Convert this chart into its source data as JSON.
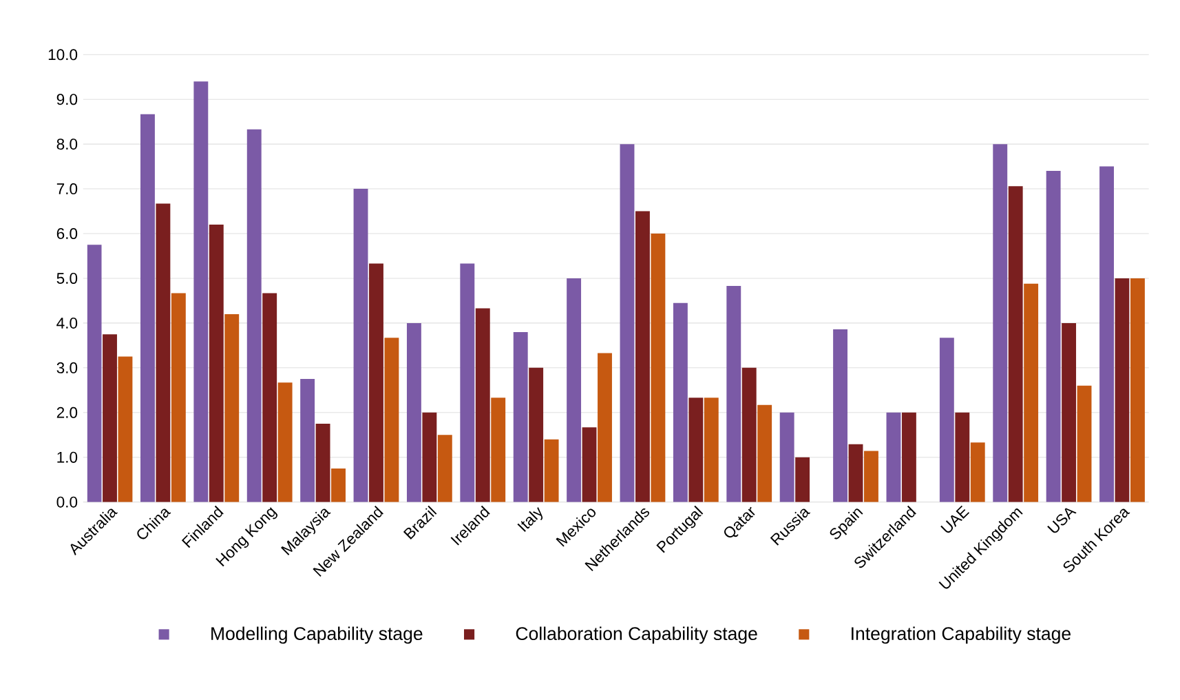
{
  "chart_data": {
    "type": "bar",
    "categories": [
      "Australia",
      "China",
      "Finland",
      "Hong Kong",
      "Malaysia",
      "New Zealand",
      "Brazil",
      "Ireland",
      "Italy",
      "Mexico",
      "Netherlands",
      "Portugal",
      "Qatar",
      "Russia",
      "Spain",
      "Switzerland",
      "UAE",
      "United Kingdom",
      "USA",
      "South Korea"
    ],
    "series": [
      {
        "name": "Modelling Capability stage",
        "color": "#7b5aa6",
        "values": [
          5.75,
          8.67,
          9.4,
          8.33,
          2.75,
          7.0,
          4.0,
          5.33,
          3.8,
          5.0,
          8.0,
          4.45,
          4.83,
          2.0,
          3.86,
          2.0,
          3.67,
          8.0,
          7.4,
          7.5
        ]
      },
      {
        "name": "Collaboration Capability stage",
        "color": "#7a1f1f",
        "values": [
          3.75,
          6.67,
          6.2,
          4.67,
          1.75,
          5.33,
          2.0,
          4.33,
          3.0,
          1.67,
          6.5,
          2.33,
          3.0,
          1.0,
          1.29,
          2.0,
          2.0,
          7.06,
          4.0,
          5.0
        ]
      },
      {
        "name": "Integration Capability stage",
        "color": "#c65911",
        "values": [
          3.25,
          4.67,
          4.2,
          2.67,
          0.75,
          3.67,
          1.5,
          2.33,
          1.4,
          3.33,
          6.0,
          2.33,
          2.17,
          null,
          1.14,
          null,
          1.33,
          4.88,
          2.6,
          5.0
        ]
      }
    ],
    "ylim": [
      0,
      10
    ],
    "yticks": [
      {
        "value": 0,
        "label": "0.0"
      },
      {
        "value": 1,
        "label": "1.0"
      },
      {
        "value": 2,
        "label": "2.0"
      },
      {
        "value": 3,
        "label": "3.0"
      },
      {
        "value": 4,
        "label": "4.0"
      },
      {
        "value": 5,
        "label": "5.0"
      },
      {
        "value": 6,
        "label": "6.0"
      },
      {
        "value": 7,
        "label": "7.0"
      },
      {
        "value": 8,
        "label": "8.0"
      },
      {
        "value": 9,
        "label": "9.0"
      },
      {
        "value": 10,
        "label": "10.0"
      }
    ],
    "grid": "y",
    "legend": "bottom"
  }
}
